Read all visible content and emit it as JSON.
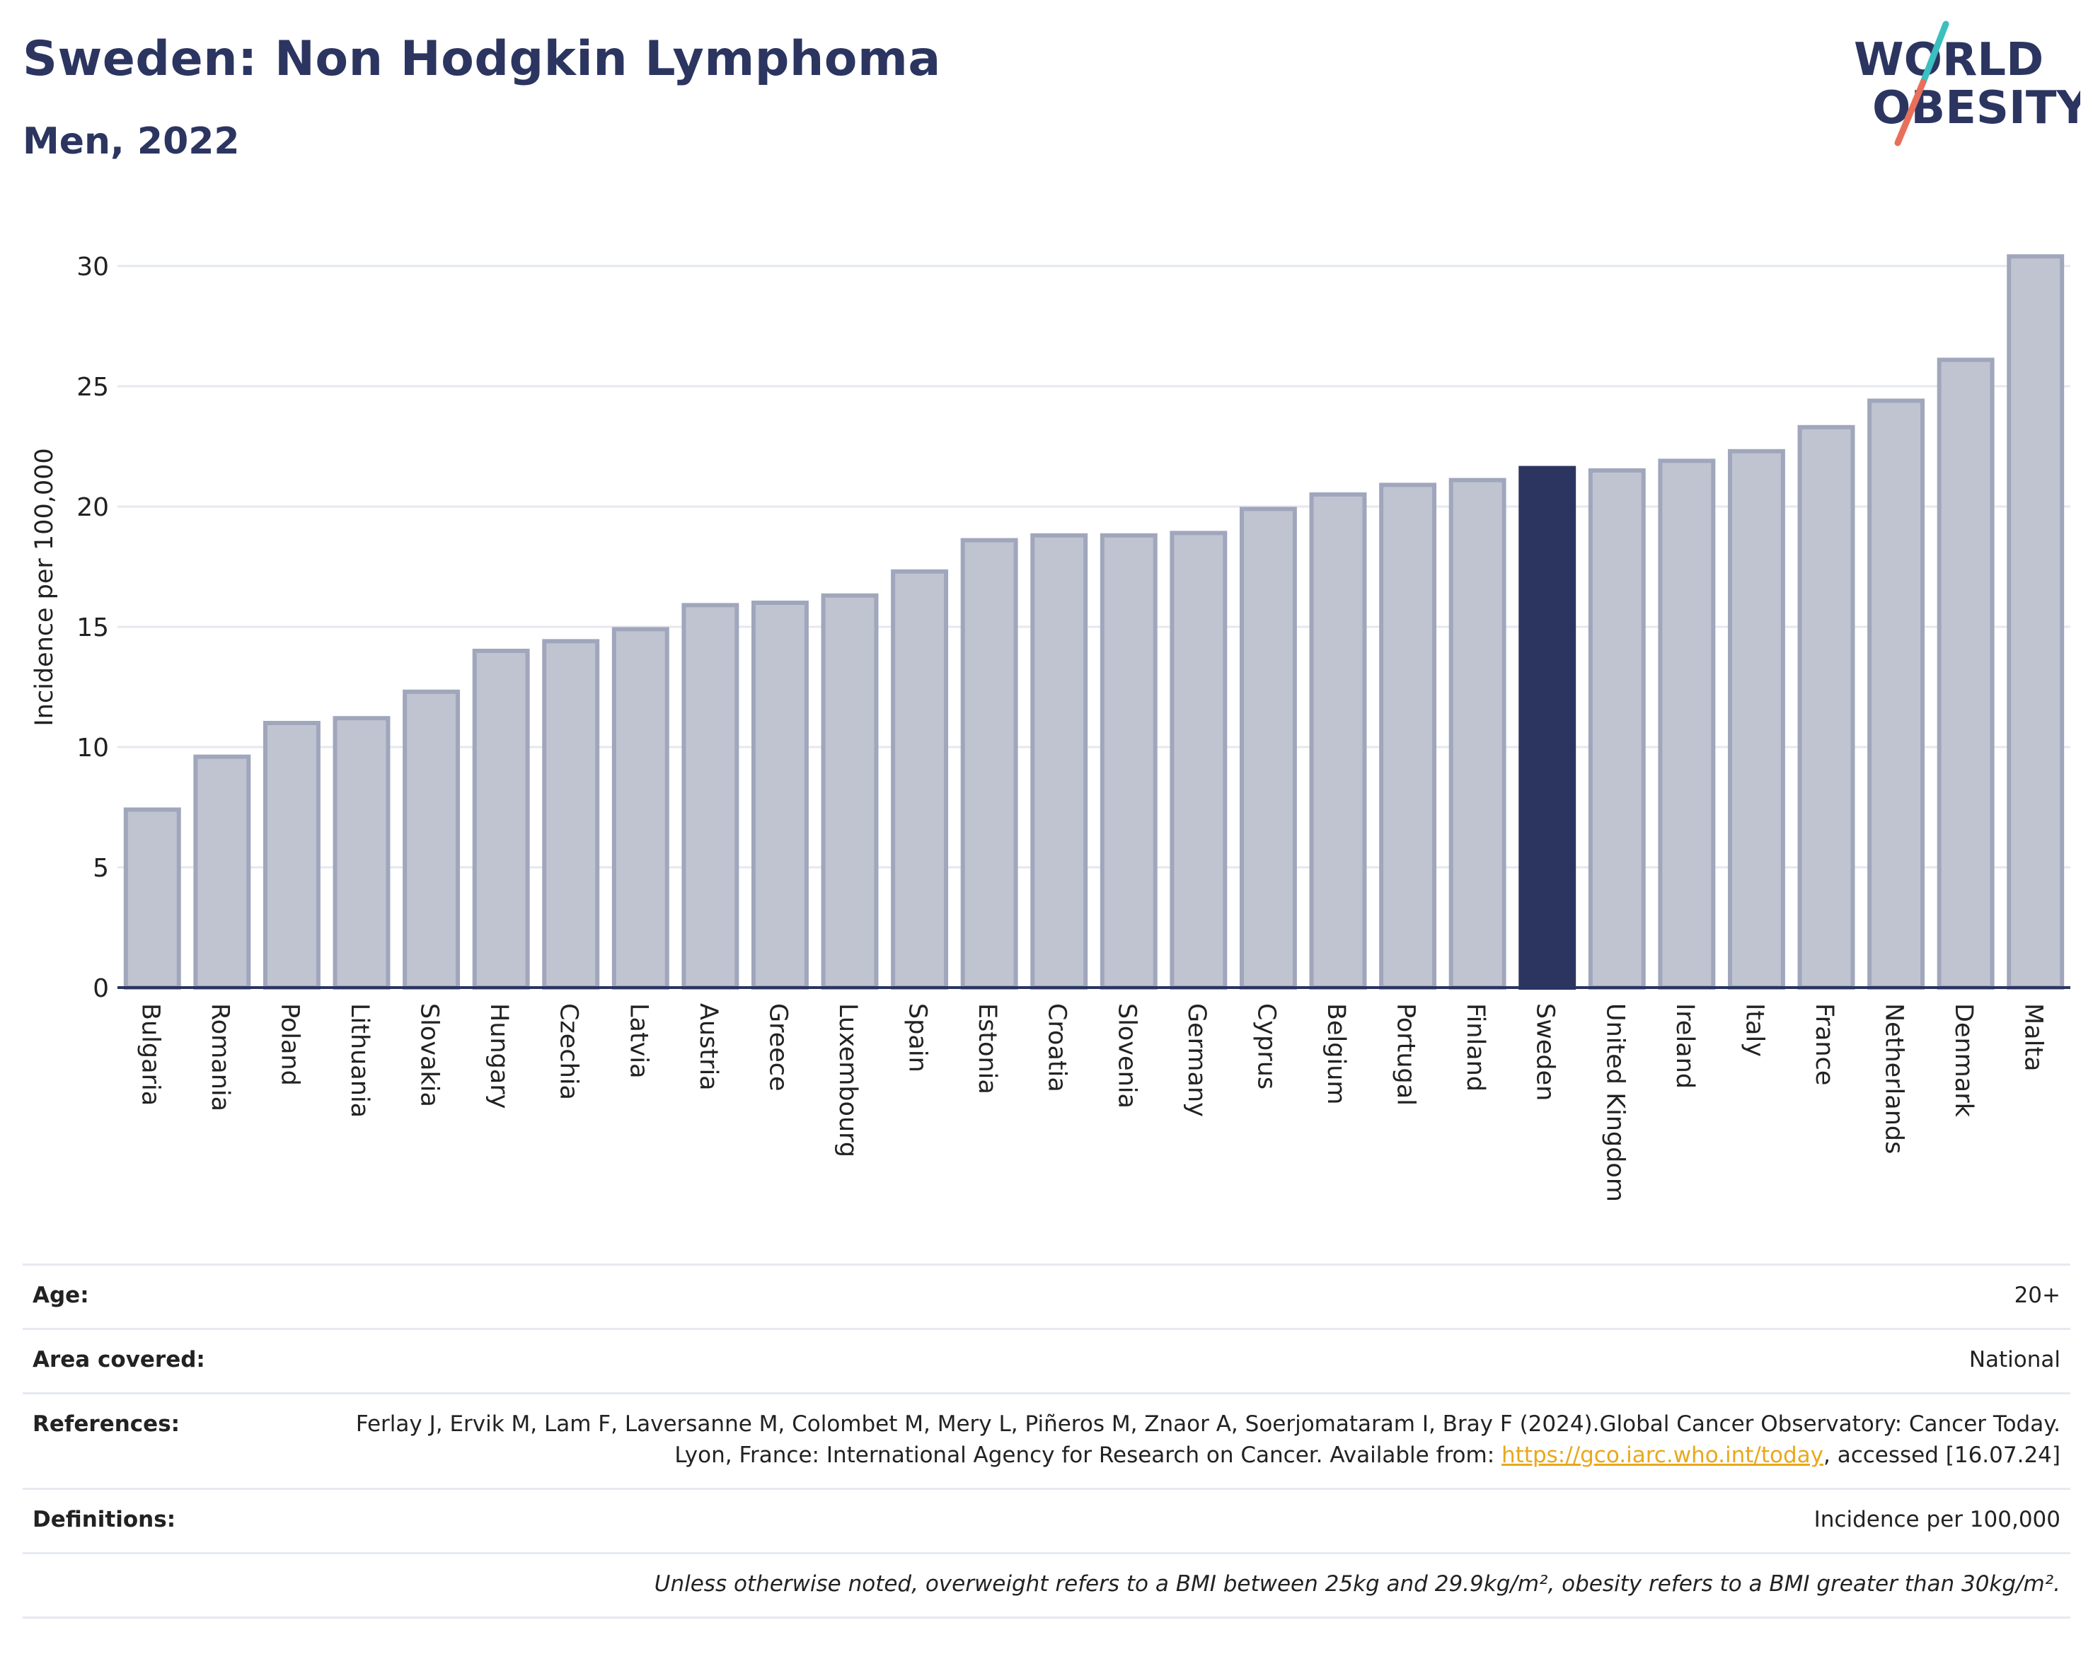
{
  "header": {
    "title": "Sweden: Non Hodgkin Lymphoma",
    "subtitle": "Men, 2022"
  },
  "logo": {
    "line1": "WORLD",
    "line2": "OBESITY",
    "colors": {
      "text": "#2b3560",
      "slash_top": "#3bbfbf",
      "slash_bottom": "#e8705a"
    }
  },
  "colors": {
    "bar_fill": "#c0c4d1",
    "bar_stroke": "#a0a6bb",
    "highlight": "#2b3560",
    "grid": "#e6e8ef",
    "axis": "#2b3560"
  },
  "chart_data": {
    "type": "bar",
    "title": "Sweden: Non Hodgkin Lymphoma",
    "subtitle": "Men, 2022",
    "ylabel": "Incidence per 100,000",
    "xlabel": "",
    "ylim": [
      0,
      31
    ],
    "yticks": [
      0,
      5,
      10,
      15,
      20,
      25,
      30
    ],
    "grid": true,
    "highlight": "Sweden",
    "categories": [
      "Bulgaria",
      "Romania",
      "Poland",
      "Lithuania",
      "Slovakia",
      "Hungary",
      "Czechia",
      "Latvia",
      "Austria",
      "Greece",
      "Luxembourg",
      "Spain",
      "Estonia",
      "Croatia",
      "Slovenia",
      "Germany",
      "Cyprus",
      "Belgium",
      "Portugal",
      "Finland",
      "Sweden",
      "United Kingdom",
      "Ireland",
      "Italy",
      "France",
      "Netherlands",
      "Denmark",
      "Malta"
    ],
    "values": [
      7.4,
      9.6,
      11.0,
      11.2,
      12.3,
      14.0,
      14.4,
      14.9,
      15.9,
      16.0,
      16.3,
      17.3,
      18.6,
      18.8,
      18.8,
      18.9,
      19.9,
      20.5,
      20.9,
      21.1,
      21.6,
      21.5,
      21.9,
      22.3,
      23.3,
      24.4,
      26.1,
      30.4
    ]
  },
  "info": {
    "rows": [
      {
        "label": "Age:",
        "value": "20+"
      },
      {
        "label": "Area covered:",
        "value": "National"
      },
      {
        "label": "References:",
        "value_before": "Ferlay J, Ervik M, Lam F, Laversanne M, Colombet M, Mery L, Piñeros M, Znaor A, Soerjomataram I, Bray F (2024).Global Cancer Observatory: Cancer Today. Lyon, France: International Agency for Research on Cancer. Available from: ",
        "link": "https://gco.iarc.who.int/today",
        "value_after": ", accessed [16.07.24]"
      },
      {
        "label": "Definitions:",
        "value": "Incidence per 100,000"
      }
    ],
    "note": "Unless otherwise noted, overweight refers to a BMI between 25kg and 29.9kg/m², obesity refers to a BMI greater than 30kg/m²."
  }
}
